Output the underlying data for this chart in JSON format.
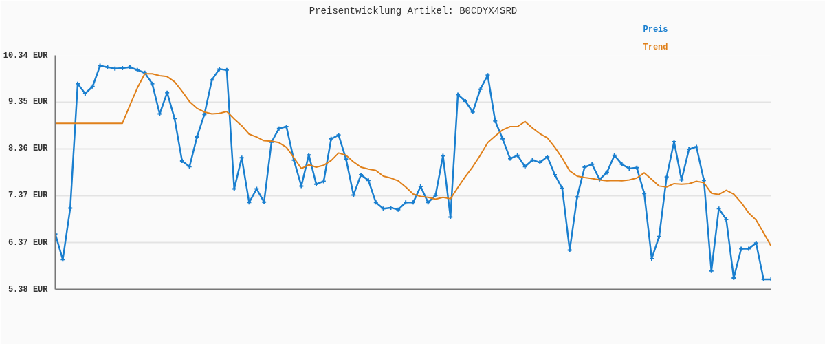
{
  "chart_data": {
    "type": "line",
    "title": "Preisentwicklung Artikel: B0CDYX4SRD",
    "categories": [
      null,
      null,
      null,
      null,
      null,
      null,
      null,
      null,
      null,
      null,
      null,
      null,
      null,
      null,
      null,
      null,
      null,
      null,
      null,
      null,
      null,
      null,
      null,
      null,
      null,
      null,
      null,
      null,
      null,
      null,
      null,
      null,
      null,
      null,
      null,
      null,
      null,
      null,
      null,
      null,
      null,
      null,
      null,
      null,
      null,
      null,
      null,
      null,
      null,
      null,
      null,
      null,
      null,
      null,
      null,
      null,
      null,
      null,
      null,
      null,
      null,
      null,
      null,
      null,
      null,
      null,
      null,
      null,
      null,
      null,
      null,
      null,
      null,
      null,
      null,
      null,
      null,
      null,
      null,
      null,
      null,
      null,
      null,
      null,
      null,
      null,
      null,
      null,
      null,
      null,
      null,
      null,
      null,
      null,
      null,
      null,
      null
    ],
    "series": [
      {
        "name": "Preis",
        "color": "#1a7fcf",
        "marker": "cross",
        "values": [
          6.55,
          6.01,
          7.1,
          9.74,
          9.53,
          9.68,
          10.12,
          10.09,
          10.06,
          10.07,
          10.09,
          10.03,
          9.97,
          9.74,
          9.1,
          9.55,
          9.0,
          8.1,
          7.98,
          8.61,
          9.09,
          9.82,
          10.05,
          10.03,
          7.51,
          8.17,
          7.22,
          7.51,
          7.23,
          8.5,
          8.79,
          8.83,
          8.12,
          7.57,
          8.23,
          7.61,
          7.67,
          8.57,
          8.65,
          8.14,
          7.38,
          7.81,
          7.69,
          7.22,
          7.09,
          7.11,
          7.07,
          7.22,
          7.22,
          7.56,
          7.22,
          7.37,
          8.21,
          6.91,
          9.51,
          9.37,
          9.14,
          9.62,
          9.92,
          8.95,
          8.57,
          8.15,
          8.22,
          7.98,
          8.12,
          8.07,
          8.19,
          7.81,
          7.52,
          6.21,
          7.34,
          7.97,
          8.03,
          7.71,
          7.86,
          8.22,
          8.03,
          7.94,
          7.96,
          7.41,
          6.03,
          6.5,
          7.76,
          8.51,
          7.7,
          8.35,
          8.4,
          7.69,
          5.77,
          7.09,
          6.86,
          5.62,
          6.24,
          6.24,
          6.36,
          5.59,
          5.59
        ]
      },
      {
        "name": "Trend",
        "color": "#e0801a",
        "marker": "none",
        "values": [
          8.9,
          8.9,
          8.9,
          8.9,
          8.9,
          8.9,
          8.9,
          8.9,
          8.9,
          8.9,
          9.28,
          9.65,
          9.95,
          9.95,
          9.91,
          9.89,
          9.78,
          9.58,
          9.36,
          9.22,
          9.14,
          9.1,
          9.11,
          9.15,
          8.99,
          8.85,
          8.67,
          8.61,
          8.53,
          8.52,
          8.49,
          8.39,
          8.17,
          7.94,
          8.02,
          7.97,
          8.01,
          8.11,
          8.27,
          8.22,
          8.08,
          7.97,
          7.93,
          7.9,
          7.78,
          7.74,
          7.68,
          7.55,
          7.4,
          7.35,
          7.33,
          7.29,
          7.33,
          7.3,
          7.54,
          7.77,
          7.98,
          8.22,
          8.49,
          8.63,
          8.76,
          8.83,
          8.83,
          8.94,
          8.8,
          8.68,
          8.59,
          8.39,
          8.16,
          7.89,
          7.78,
          7.75,
          7.73,
          7.7,
          7.68,
          7.69,
          7.68,
          7.7,
          7.74,
          7.85,
          7.71,
          7.57,
          7.55,
          7.62,
          7.61,
          7.62,
          7.67,
          7.64,
          7.42,
          7.39,
          7.48,
          7.4,
          7.22,
          7.0,
          6.85,
          6.58,
          6.3
        ]
      }
    ],
    "ylim": [
      5.38,
      10.34
    ],
    "yticks": [
      {
        "value": 5.38,
        "label": "5.38 EUR"
      },
      {
        "value": 6.37,
        "label": "6.37 EUR"
      },
      {
        "value": 7.37,
        "label": "7.37 EUR"
      },
      {
        "value": 8.36,
        "label": "8.36 EUR"
      },
      {
        "value": 9.35,
        "label": "9.35 EUR"
      },
      {
        "value": 10.34,
        "label": "10.34 EUR"
      }
    ],
    "tick_labels": "y",
    "grid": "y",
    "line_style": "solid"
  }
}
